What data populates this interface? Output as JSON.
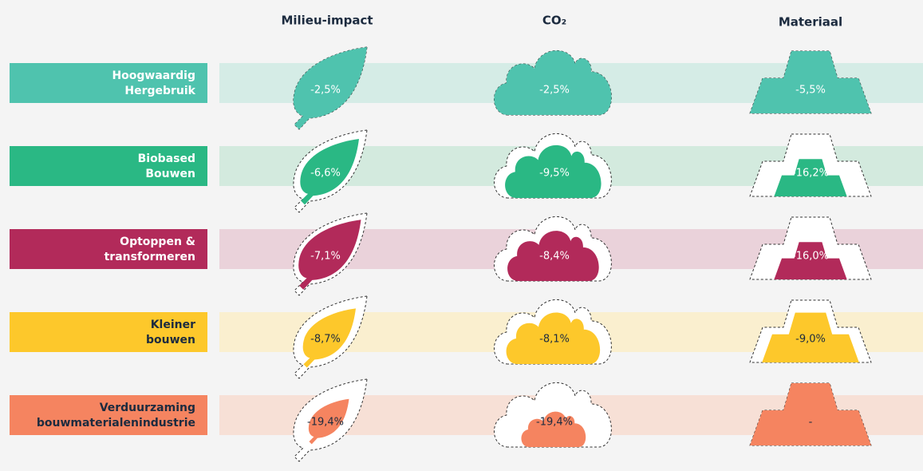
{
  "columns": [
    "Milieu-impact",
    "CO₂",
    "Materiaal"
  ],
  "rows": [
    {
      "label": [
        "Hoogwaardig",
        "Hergebruik"
      ],
      "values": [
        "-2,5%",
        "-2,5%",
        "-5,5%"
      ]
    },
    {
      "label": [
        "Biobased",
        "Bouwen"
      ],
      "values": [
        "-6,6%",
        "-9,5%",
        "-16,2%"
      ]
    },
    {
      "label": [
        "Optoppen &",
        "transformeren"
      ],
      "values": [
        "-7,1%",
        "-8,4%",
        "-16,0%"
      ]
    },
    {
      "label": [
        "Kleiner",
        "bouwen"
      ],
      "values": [
        "-8,7%",
        "-8,1%",
        "-9,0%"
      ]
    },
    {
      "label": [
        "Verduurzaming",
        "bouwmaterialenindustrie"
      ],
      "values": [
        "-19,4%",
        "-19,4%",
        "-"
      ]
    }
  ]
}
